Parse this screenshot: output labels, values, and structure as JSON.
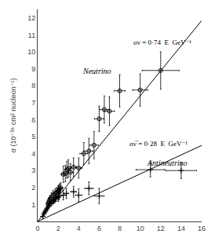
{
  "chart_data": {
    "type": "scatter",
    "ylabel": "σ (10⁻³⁸ cm² nucleon⁻¹)",
    "xlim": [
      0,
      16
    ],
    "ylim": [
      0,
      12.5
    ],
    "xticks": [
      0,
      2,
      4,
      6,
      8,
      10,
      12,
      14,
      16
    ],
    "yticks": [
      1,
      2,
      3,
      4,
      5,
      6,
      7,
      8,
      9,
      10,
      11,
      12
    ],
    "grid": false,
    "series": [
      {
        "type": "line",
        "color": "#000000",
        "line_style": "solid",
        "x": [
          0,
          16
        ],
        "values": [
          0,
          11.84
        ]
      },
      {
        "type": "line",
        "color": "#000000",
        "line_style": "solid",
        "x": [
          0,
          16
        ],
        "values": [
          0,
          4.48
        ]
      },
      {
        "type": "scatter",
        "color": "#000000",
        "marker": "circle-open",
        "x": [
          1.0,
          1.1,
          1.2,
          1.35,
          1.5,
          1.7,
          1.85,
          2.0,
          2.05,
          2.15,
          2.25,
          2.5,
          2.7,
          2.85,
          3.0,
          3.2,
          3.5,
          4.0,
          4.5,
          5.0,
          5.5,
          6.0,
          6.5,
          7.0,
          8.0,
          10.0,
          12.0
        ],
        "values": [
          1.05,
          1.18,
          1.32,
          1.45,
          1.55,
          1.65,
          1.72,
          1.78,
          1.85,
          1.92,
          1.98,
          2.78,
          2.82,
          3.05,
          3.12,
          2.9,
          3.2,
          3.15,
          4.0,
          4.15,
          4.5,
          6.05,
          6.6,
          6.5,
          7.7,
          7.75,
          8.9
        ],
        "xerr": [
          0.12,
          0.12,
          0.12,
          0.13,
          0.13,
          0.14,
          0.14,
          0.18,
          0.18,
          0.18,
          0.2,
          0.22,
          0.22,
          0.23,
          0.25,
          0.28,
          0.3,
          0.35,
          0.38,
          0.4,
          0.42,
          0.45,
          0.48,
          0.5,
          0.55,
          0.75,
          1.8
        ],
        "yerr": [
          0.22,
          0.22,
          0.22,
          0.25,
          0.28,
          0.28,
          0.28,
          0.32,
          0.3,
          0.3,
          0.3,
          0.48,
          0.48,
          0.5,
          0.52,
          0.5,
          0.55,
          0.6,
          0.65,
          0.75,
          0.8,
          0.75,
          0.8,
          0.85,
          0.95,
          0.95,
          1.1
        ]
      },
      {
        "type": "scatter",
        "color": "#000000",
        "marker": "cross",
        "x": [
          0.5,
          0.6,
          0.7,
          0.8,
          0.9,
          1.0,
          1.1,
          1.2,
          1.35,
          1.5,
          1.6,
          1.7,
          1.8,
          2.0,
          2.1,
          2.5,
          2.8,
          3.5,
          4.0,
          5.0,
          6.0,
          11.0,
          14.0
        ],
        "values": [
          0.3,
          0.45,
          0.55,
          0.65,
          0.75,
          0.85,
          0.95,
          1.05,
          1.1,
          1.2,
          1.25,
          1.32,
          1.38,
          1.42,
          1.5,
          1.55,
          1.65,
          1.75,
          1.55,
          1.95,
          1.5,
          3.05,
          3.0
        ],
        "xerr": [
          0.1,
          0.1,
          0.1,
          0.1,
          0.1,
          0.1,
          0.1,
          0.1,
          0.1,
          0.1,
          0.1,
          0.1,
          0.1,
          0.14,
          0.14,
          0.18,
          0.2,
          0.28,
          0.32,
          0.42,
          0.48,
          1.4,
          1.5
        ],
        "yerr": [
          0.12,
          0.12,
          0.12,
          0.12,
          0.13,
          0.13,
          0.14,
          0.14,
          0.18,
          0.18,
          0.18,
          0.2,
          0.2,
          0.24,
          0.24,
          0.28,
          0.3,
          0.32,
          0.38,
          0.38,
          0.45,
          0.42,
          0.48
        ]
      }
    ],
    "annotations": [
      {
        "text": "Neutrino",
        "x": 4.2,
        "y": 8.5
      },
      {
        "text": "Antineutrino",
        "x": 10.5,
        "y": 3.1
      },
      {
        "text": "σν = 0·74  E  GeV⁻¹",
        "x": 9.2,
        "y": 10.9
      },
      {
        "text": "σν̅ = 0·28  E  GeV⁻¹",
        "x": 8.8,
        "y": 4.9
      }
    ]
  }
}
